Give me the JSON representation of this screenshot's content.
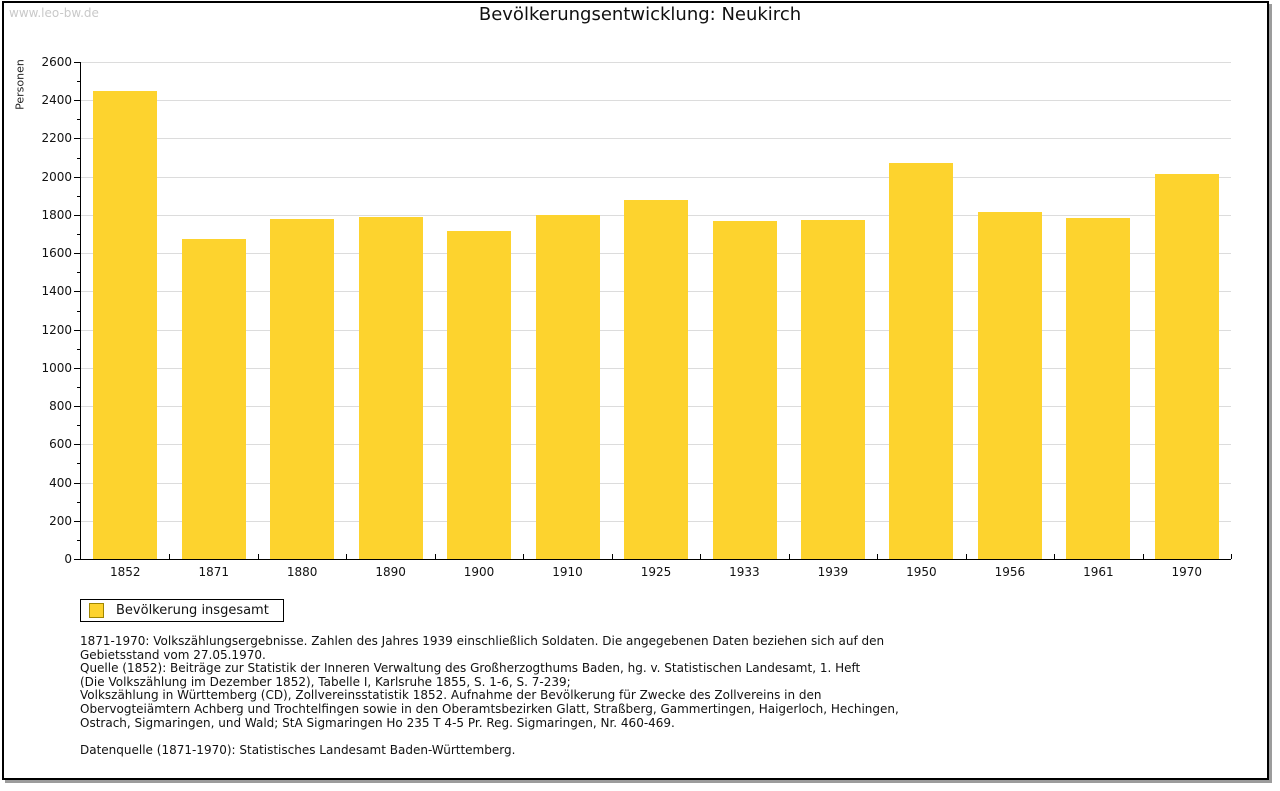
{
  "watermark": "www.leo-bw.de",
  "title": "Bevölkerungsentwicklung: Neukirch",
  "legend": {
    "label": "Bevölkerung insgesamt"
  },
  "colors": {
    "bar": "#fdd32e",
    "swatch_border": "#a08600",
    "gridline": "#dcdcdc",
    "watermark": "#c9c9c9",
    "frame_shadow": "#9c9c9c"
  },
  "chart_data": {
    "type": "bar",
    "title": "Bevölkerungsentwicklung: Neukirch",
    "xlabel": "",
    "ylabel": "Personen",
    "categories": [
      "1852",
      "1871",
      "1880",
      "1890",
      "1900",
      "1910",
      "1925",
      "1933",
      "1939",
      "1950",
      "1956",
      "1961",
      "1970"
    ],
    "values": [
      2447,
      1672,
      1780,
      1787,
      1716,
      1800,
      1876,
      1766,
      1772,
      2073,
      1815,
      1783,
      2014
    ],
    "series_name": "Bevölkerung insgesamt",
    "ylim": [
      0,
      2600
    ],
    "ytick_major_step": 200,
    "ytick_minor_step": 100,
    "grid": true,
    "legend_position": "bottom-left",
    "bar_color": "#fdd32e"
  },
  "footnote_lines": [
    "1871-1970: Volkszählungsergebnisse. Zahlen des Jahres 1939 einschließlich Soldaten. Die angegebenen Daten beziehen sich auf den",
    "Gebietsstand vom 27.05.1970.",
    "Quelle (1852): Beiträge zur Statistik der Inneren Verwaltung des Großherzogthums Baden, hg. v. Statistischen Landesamt, 1. Heft",
    "(Die Volkszählung im Dezember 1852), Tabelle I, Karlsruhe 1855, S. 1-6, S. 7-239;",
    "Volkszählung in Württemberg (CD), Zollvereinsstatistik 1852. Aufnahme der Bevölkerung für Zwecke des Zollvereins in den",
    "Obervogteiämtern Achberg und Trochtelfingen sowie in den Oberamtsbezirken Glatt, Straßberg, Gammertingen, Haigerloch, Hechingen,",
    "Ostrach, Sigmaringen, und Wald; StA Sigmaringen Ho 235 T 4-5 Pr. Reg. Sigmaringen, Nr. 460-469.",
    "",
    "Datenquelle (1871-1970): Statistisches Landesamt Baden-Württemberg."
  ]
}
